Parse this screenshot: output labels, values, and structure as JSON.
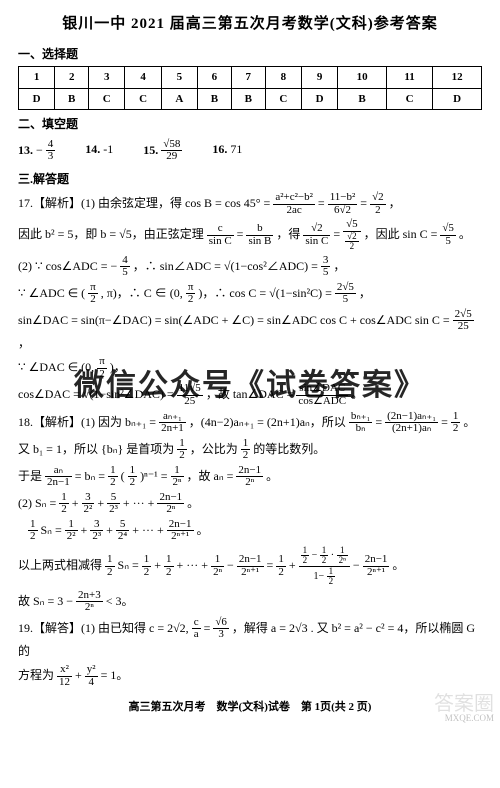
{
  "title": "银川一中 2021 届高三第五次月考数学(文科)参考答案",
  "sections": {
    "choice": "一、选择题",
    "fill": "二、填空题",
    "solve": "三.解答题"
  },
  "choiceTable": {
    "nums": [
      "1",
      "2",
      "3",
      "4",
      "5",
      "6",
      "7",
      "8",
      "9",
      "10",
      "11",
      "12"
    ],
    "ans": [
      "D",
      "B",
      "C",
      "C",
      "A",
      "B",
      "B",
      "C",
      "D",
      "B",
      "C",
      "D"
    ]
  },
  "fill": {
    "q13_label": "13.",
    "q13_val_prefix": "−",
    "q13_num": "4",
    "q13_den": "3",
    "q14_label": "14.",
    "q14_val": "-1",
    "q15_label": "15.",
    "q15_num": "√58",
    "q15_den": "29",
    "q16_label": "16.",
    "q16_val": "71"
  },
  "q17": {
    "l1a": "17.【解析】(1) 由余弦定理，得 cos B = cos 45° =",
    "f1n": "a²+c²−b²",
    "f1d": "2ac",
    "l1b": "=",
    "f2n": "11−b²",
    "f2d": "6√2",
    "l1c": "=",
    "f3n": "√2",
    "f3d": "2",
    "l1d": "，",
    "l2a": "因此 b² = 5，即 b = √5，由正弦定理",
    "f4n": "c",
    "f4d": "sin C",
    "l2b": "=",
    "f5n": "b",
    "f5d": "sin B",
    "l2c": "，得",
    "f6n": "√2",
    "f6d": "sin C",
    "l2d": "=",
    "f7n": "√5",
    "f7d_n": "√2",
    "f7d_d": "2",
    "l2e": "，因此 sin C =",
    "f8n": "√5",
    "f8d": "5",
    "l2f": "。",
    "l3a": "(2) ∵ cos∠ADC = −",
    "f9n": "4",
    "f9d": "5",
    "l3b": "，∴ sin∠ADC = √(1−cos²∠ADC) =",
    "f10n": "3",
    "f10d": "5",
    "l3c": "，",
    "l4a": "∵ ∠ADC ∈ (",
    "f11n": "π",
    "f11d": "2",
    "l4b": ", π)，∴ C ∈ (0,",
    "f12n": "π",
    "f12d": "2",
    "l4c": ")，∴ cos C = √(1−sin²C) =",
    "f13n": "2√5",
    "f13d": "5",
    "l4d": "，",
    "l5a": "sin∠DAC = sin(π−∠DAC) = sin(∠ADC + ∠C) = sin∠ADC cos C + cos∠ADC sin C =",
    "f14n": "2√5",
    "f14d": "25",
    "l5b": "，",
    "l6a": "∵ ∠DAC ∈ (0,",
    "f15n": "π",
    "f15d": "2",
    "l6b": ")，",
    "l7a": "cos∠DAC = √(1−sin²∠DAC) =",
    "f16n": "11√5",
    "f16d": "25",
    "l7b": "，故 tan∠DAC =",
    "f17n": "sin∠DAC",
    "f17d": "cos∠ADC",
    "l7c": "。"
  },
  "q18": {
    "l1a": "18.【解析】(1) 因为 bₙ₊₁ =",
    "f1n": "aₙ₊₁",
    "f1d": "2n+1",
    "l1b": "，(4n−2)aₙ₊₁ = (2n+1)aₙ，所以",
    "f2n": "bₙ₊₁",
    "f2d": "bₙ",
    "l1c": "=",
    "f3n": "(2n−1)aₙ₊₁",
    "f3d": "(2n+1)aₙ",
    "l1d": "=",
    "f4n": "1",
    "f4d": "2",
    "l1e": "。",
    "l2a": "又 b₁ = 1，所以 {bₙ} 是首项为",
    "f5n": "1",
    "f5d": "2",
    "l2b": "，公比为",
    "f6n": "1",
    "f6d": "2",
    "l2c": "的等比数列。",
    "l3a": "于是",
    "f7n": "aₙ",
    "f7d": "2n−1",
    "l3b": "= bₙ =",
    "f8n": "1",
    "f8d": "2",
    "l3c": "(",
    "f9n": "1",
    "f9d": "2",
    "l3d": ")ⁿ⁻¹ =",
    "f10n": "1",
    "f10d": "2ⁿ",
    "l3e": "，故 aₙ =",
    "f11n": "2n−1",
    "f11d": "2ⁿ",
    "l3f": "。",
    "l4a": "(2) Sₙ =",
    "f12n": "1",
    "f12d": "2",
    "l4b": "+",
    "f13n": "3",
    "f13d": "2²",
    "l4c": "+",
    "f14n": "5",
    "f14d": "2³",
    "l4d": "+ ··· +",
    "f15n": "2n−1",
    "f15d": "2ⁿ",
    "l4e": "。",
    "l5a_n": "1",
    "l5a_d": "2",
    "l5b": "Sₙ =",
    "f16n": "1",
    "f16d": "2²",
    "l5c": "+",
    "f17n": "3",
    "f17d": "2³",
    "l5d": "+",
    "f18n": "5",
    "f18d": "2⁴",
    "l5e": "+ ··· +",
    "f19n": "2n−1",
    "f19d": "2ⁿ⁺¹",
    "l5f": "。",
    "l6a": "以上两式相减得",
    "f20n": "1",
    "f20d": "2",
    "l6b": "Sₙ =",
    "f21n": "1",
    "f21d": "2",
    "l6c": "+",
    "f22n": "1",
    "f22d": "2",
    "l6d": "+ ··· +",
    "f23n": "1",
    "f23d": "2ⁿ",
    "l6e": "−",
    "f24n": "2n−1",
    "f24d": "2ⁿ⁺¹",
    "l6f": "=",
    "f25n": "1",
    "f25d": "2",
    "l6g": "+",
    "bigfrac_top_a_n": "1",
    "bigfrac_top_a_d": "2",
    "bigfrac_top_mid": "−",
    "bigfrac_top_b_n": "1",
    "bigfrac_top_b_d": "2",
    "bigfrac_top_dot": "·",
    "bigfrac_top_c_n": "1",
    "bigfrac_top_c_d": "2ⁿ",
    "bigfrac_bot_a": "1−",
    "bigfrac_bot_b_n": "1",
    "bigfrac_bot_b_d": "2",
    "l6h": "−",
    "f26n": "2n−1",
    "f26d": "2ⁿ⁺¹",
    "l6i": "。",
    "l7a": "故 Sₙ = 3 −",
    "f27n": "2n+3",
    "f27d": "2ⁿ",
    "l7b": "< 3。"
  },
  "q19": {
    "l1a": "19.【解答】(1) 由已知得 c = 2√2,",
    "f1n": "c",
    "f1d": "a",
    "l1b": "=",
    "f2n": "√6",
    "f2d": "3",
    "l1c": "，解得 a = 2√3 . 又 b² = a² − c² = 4，所以椭圆 G 的",
    "l2a": "方程为",
    "f3n": "x²",
    "f3d": "12",
    "l2b": "+",
    "f4n": "y²",
    "f4d": "4",
    "l2c": "= 1。"
  },
  "footer": "高三第五次月考　数学(文科)试卷　第 1页(共 2 页)",
  "corner": {
    "big": "答案圈",
    "small": "MXQE.COM"
  },
  "watermark": "微信公众号《试卷答案》"
}
